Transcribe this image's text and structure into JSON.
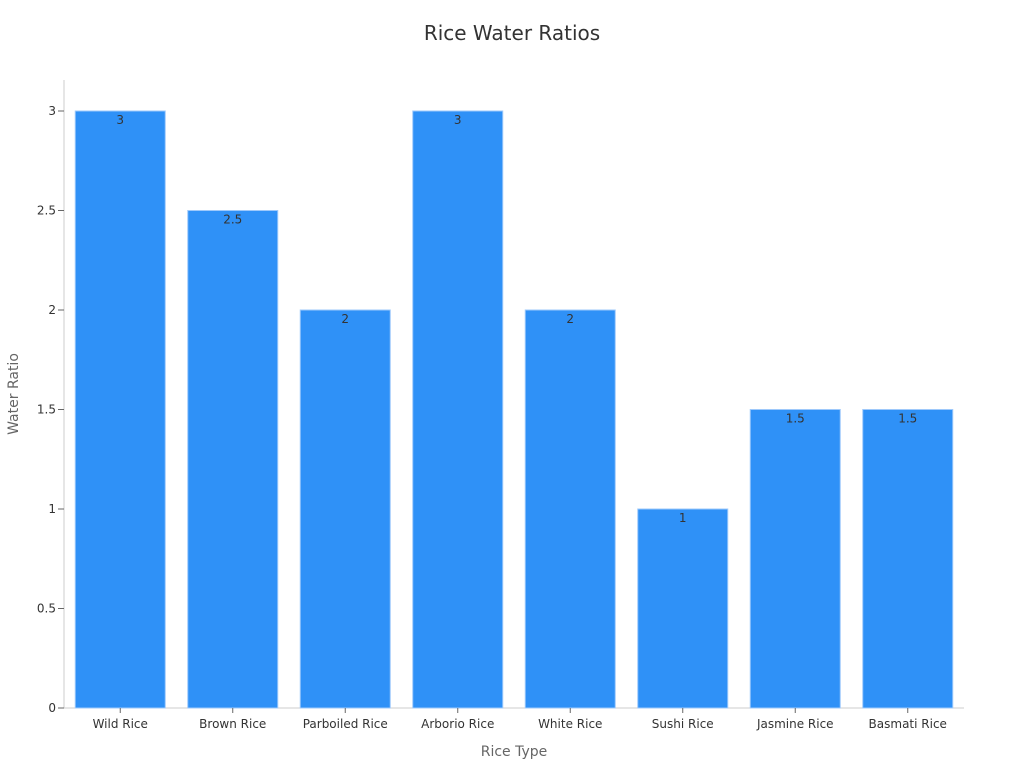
{
  "chart_data": {
    "type": "bar",
    "title": "Rice Water Ratios",
    "xlabel": "Rice Type",
    "ylabel": "Water Ratio",
    "categories": [
      "Wild Rice",
      "Brown Rice",
      "Parboiled Rice",
      "Arborio Rice",
      "White Rice",
      "Sushi Rice",
      "Jasmine Rice",
      "Basmati Rice"
    ],
    "values": [
      3,
      2.5,
      2,
      3,
      2,
      1,
      1.5,
      1.5
    ],
    "value_labels": [
      "3",
      "2.5",
      "2",
      "3",
      "2",
      "1",
      "1.5",
      "1.5"
    ],
    "yticks": [
      "0",
      "0.5",
      "1",
      "1.5",
      "2",
      "2.5",
      "3"
    ],
    "ylim": [
      0,
      3.15
    ],
    "grid": false,
    "legend": "none",
    "bar_color": "#2f91f7",
    "bar_border_color": "#9ec9fb"
  }
}
